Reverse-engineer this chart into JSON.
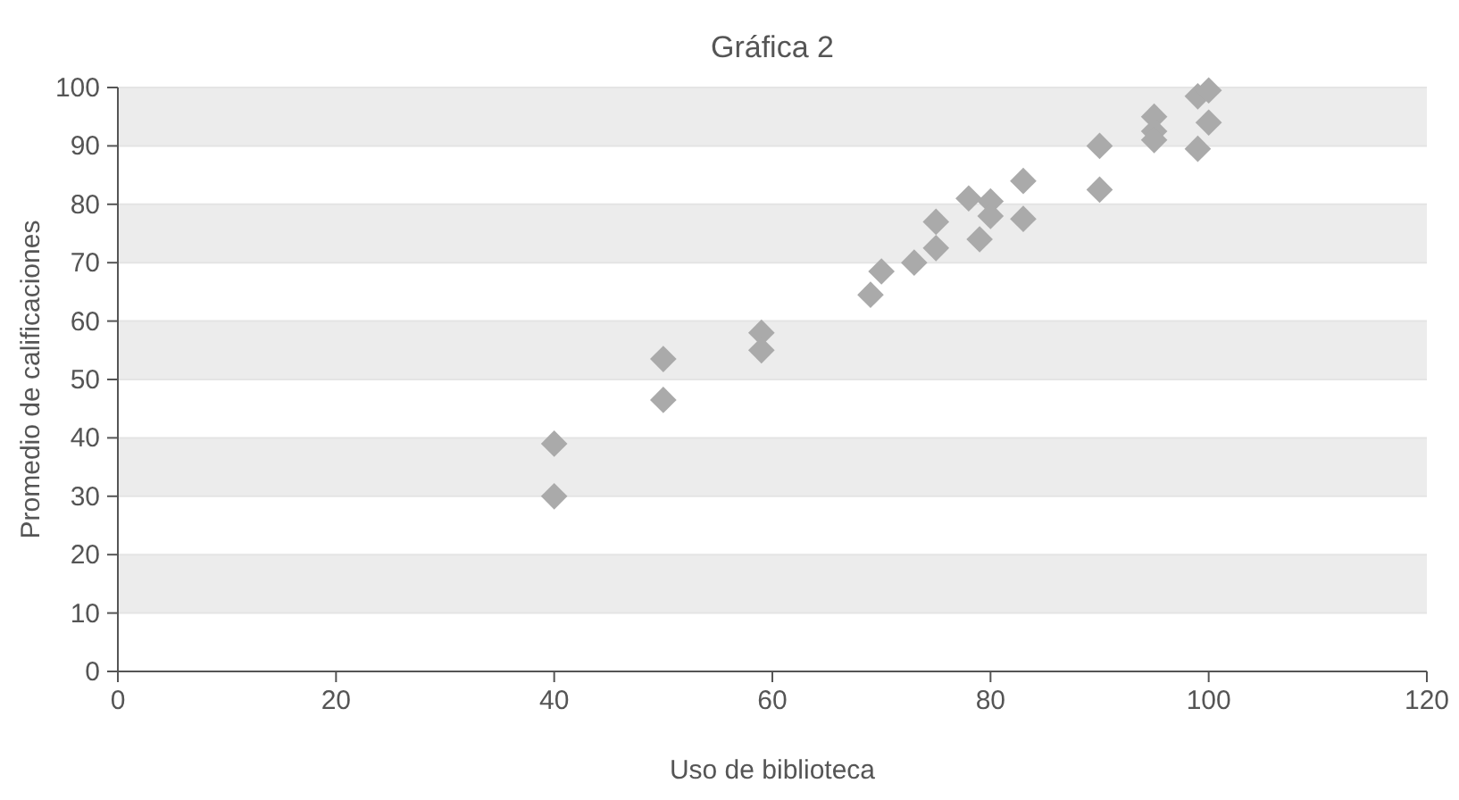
{
  "chart_data": {
    "type": "scatter",
    "title": "Gráfica 2",
    "xlabel": "Uso de biblioteca",
    "ylabel": "Promedio de calificaciones",
    "x": [
      40,
      40,
      50,
      50,
      59,
      59,
      69,
      70,
      73,
      75,
      75,
      78,
      79,
      80,
      80,
      83,
      83,
      90,
      90,
      95,
      95,
      95,
      99,
      100,
      100,
      99
    ],
    "values": [
      30,
      39,
      53.5,
      46.5,
      58,
      55,
      64.5,
      68.5,
      70,
      77,
      72.5,
      81,
      74,
      80.5,
      78,
      84,
      77.5,
      82.5,
      90,
      95,
      92.5,
      91,
      98.5,
      99.5,
      94,
      89.5
    ],
    "color": "#aaaaaa",
    "marker": "diamond",
    "xlim": [
      0,
      120
    ],
    "xticks": [
      0,
      20,
      40,
      60,
      80,
      100,
      120
    ],
    "ylim": [
      0,
      100
    ],
    "yticks": [
      0,
      10,
      20,
      30,
      40,
      50,
      60,
      70,
      80,
      90,
      100
    ],
    "grid": "y"
  }
}
